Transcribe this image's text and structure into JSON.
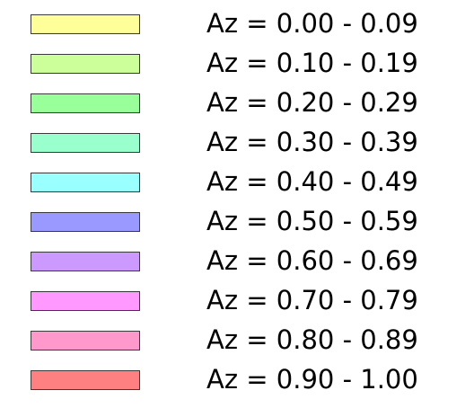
{
  "legend": {
    "items": [
      {
        "label": "Az = 0.00 - 0.09",
        "color": "#ffff99"
      },
      {
        "label": "Az = 0.10 - 0.19",
        "color": "#ccff99"
      },
      {
        "label": "Az = 0.20 - 0.29",
        "color": "#99ff99"
      },
      {
        "label": "Az = 0.30 - 0.39",
        "color": "#99ffcc"
      },
      {
        "label": "Az = 0.40 - 0.49",
        "color": "#99ffff"
      },
      {
        "label": "Az = 0.50 - 0.59",
        "color": "#9999ff"
      },
      {
        "label": "Az = 0.60 - 0.69",
        "color": "#cc99ff"
      },
      {
        "label": "Az = 0.70 - 0.79",
        "color": "#ff99ff"
      },
      {
        "label": "Az = 0.80 - 0.89",
        "color": "#ff99cc"
      },
      {
        "label": "Az = 0.90 - 1.00",
        "color": "#ff8080"
      }
    ]
  }
}
